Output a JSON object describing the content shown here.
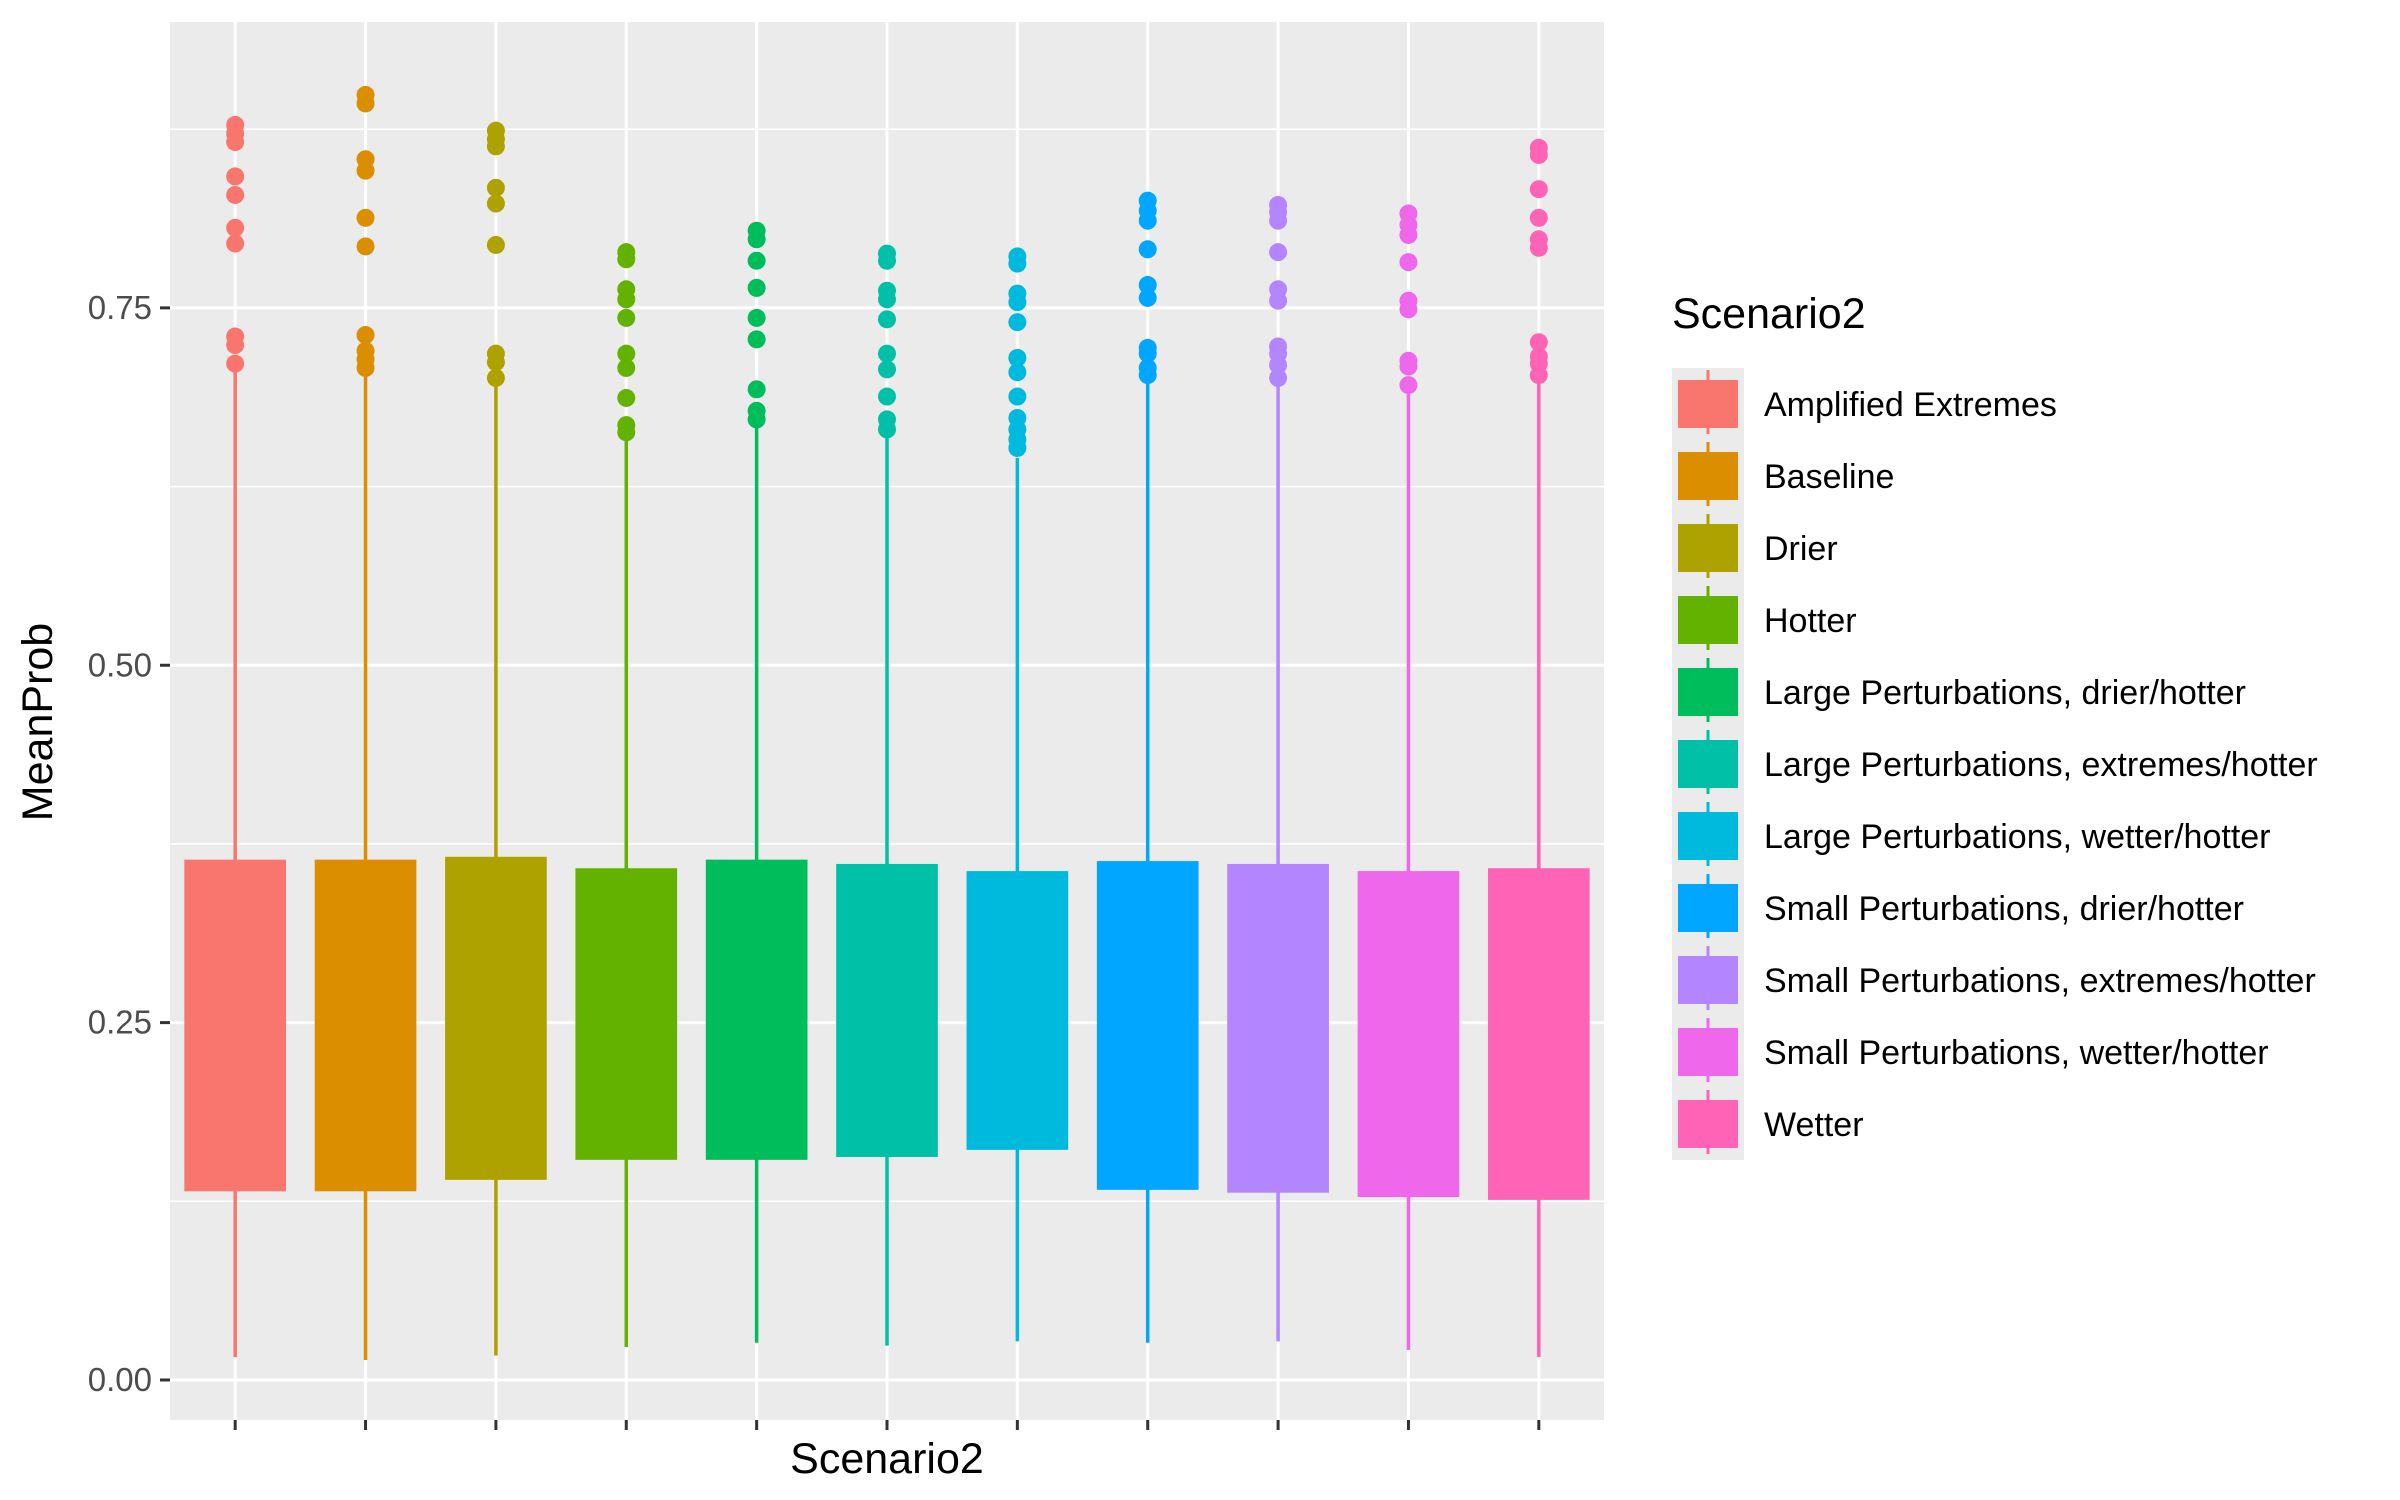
{
  "chart_data": {
    "type": "boxplot",
    "xlabel": "Scenario2",
    "ylabel": "MeanProb",
    "legend_title": "Scenario2",
    "legend_position": "right",
    "grid": true,
    "ylim": [
      -0.028,
      0.95
    ],
    "yticks": [
      0.0,
      0.25,
      0.5,
      0.75
    ],
    "ytick_labels": [
      "0.00",
      "0.25",
      "0.50",
      "0.75"
    ],
    "series": [
      {
        "name": "Amplified Extremes",
        "color": "#F8766D",
        "min": 0.016,
        "q1": 0.132,
        "q3": 0.364,
        "whisker_high": 0.71,
        "outliers": [
          0.878,
          0.872,
          0.866,
          0.842,
          0.829,
          0.806,
          0.795,
          0.73,
          0.724,
          0.711
        ]
      },
      {
        "name": "Baseline",
        "color": "#DB8E00",
        "min": 0.014,
        "q1": 0.132,
        "q3": 0.364,
        "whisker_high": 0.705,
        "outliers": [
          0.899,
          0.893,
          0.854,
          0.846,
          0.813,
          0.793,
          0.731,
          0.72,
          0.714,
          0.708
        ]
      },
      {
        "name": "Drier",
        "color": "#AEA200",
        "min": 0.017,
        "q1": 0.14,
        "q3": 0.366,
        "whisker_high": 0.698,
        "outliers": [
          0.874,
          0.868,
          0.863,
          0.834,
          0.823,
          0.794,
          0.718,
          0.712,
          0.701
        ]
      },
      {
        "name": "Hotter",
        "color": "#64B200",
        "min": 0.023,
        "q1": 0.154,
        "q3": 0.358,
        "whisker_high": 0.66,
        "outliers": [
          0.789,
          0.784,
          0.763,
          0.756,
          0.743,
          0.718,
          0.708,
          0.687,
          0.668,
          0.663
        ]
      },
      {
        "name": "Large Perturbations, drier/hotter",
        "color": "#00BD5C",
        "min": 0.026,
        "q1": 0.154,
        "q3": 0.364,
        "whisker_high": 0.672,
        "outliers": [
          0.804,
          0.798,
          0.783,
          0.764,
          0.743,
          0.728,
          0.693,
          0.678,
          0.672
        ]
      },
      {
        "name": "Large Perturbations, extremes/hotter",
        "color": "#00C1A7",
        "min": 0.024,
        "q1": 0.156,
        "q3": 0.361,
        "whisker_high": 0.664,
        "outliers": [
          0.788,
          0.783,
          0.762,
          0.756,
          0.742,
          0.718,
          0.707,
          0.688,
          0.672,
          0.665
        ]
      },
      {
        "name": "Large Perturbations, wetter/hotter",
        "color": "#00BADE",
        "min": 0.027,
        "q1": 0.161,
        "q3": 0.356,
        "whisker_high": 0.645,
        "outliers": [
          0.786,
          0.781,
          0.76,
          0.754,
          0.74,
          0.715,
          0.705,
          0.688,
          0.673,
          0.665,
          0.658,
          0.652
        ]
      },
      {
        "name": "Small Perturbations, drier/hotter",
        "color": "#00A6FF",
        "min": 0.026,
        "q1": 0.133,
        "q3": 0.363,
        "whisker_high": 0.703,
        "outliers": [
          0.825,
          0.818,
          0.811,
          0.791,
          0.766,
          0.757,
          0.722,
          0.718,
          0.708,
          0.703
        ]
      },
      {
        "name": "Small Perturbations, extremes/hotter",
        "color": "#B385FF",
        "min": 0.027,
        "q1": 0.131,
        "q3": 0.361,
        "whisker_high": 0.7,
        "outliers": [
          0.822,
          0.817,
          0.811,
          0.789,
          0.763,
          0.755,
          0.723,
          0.718,
          0.71,
          0.701
        ]
      },
      {
        "name": "Small Perturbations, wetter/hotter",
        "color": "#EF67EB",
        "min": 0.021,
        "q1": 0.128,
        "q3": 0.356,
        "whisker_high": 0.695,
        "outliers": [
          0.816,
          0.808,
          0.801,
          0.782,
          0.755,
          0.749,
          0.713,
          0.709,
          0.696
        ]
      },
      {
        "name": "Wetter",
        "color": "#FF63B6",
        "min": 0.016,
        "q1": 0.126,
        "q3": 0.358,
        "whisker_high": 0.702,
        "outliers": [
          0.862,
          0.857,
          0.833,
          0.813,
          0.798,
          0.792,
          0.726,
          0.716,
          0.711,
          0.703
        ]
      }
    ]
  }
}
